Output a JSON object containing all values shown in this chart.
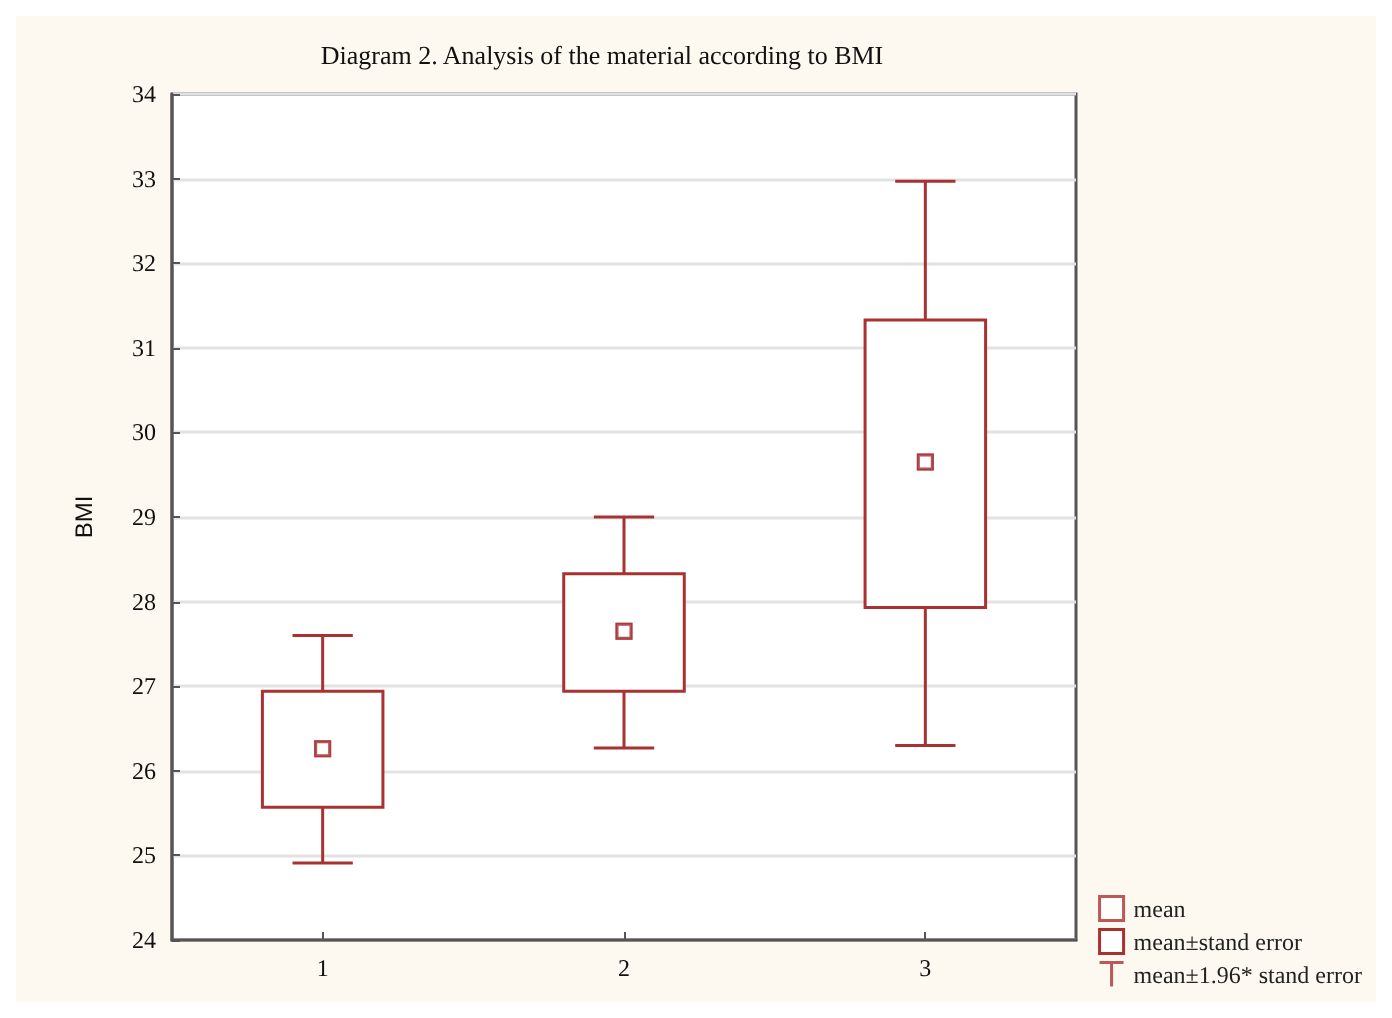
{
  "chart_data": {
    "type": "box",
    "title": "Diagram 2. Analysis of the material according to BMI",
    "ylabel": "BMI",
    "categories": [
      "1",
      "2",
      "3"
    ],
    "series": [
      {
        "type": "scatter",
        "name": "mean",
        "color": "#a83232",
        "marker": "square",
        "values": [
          26.26,
          27.65,
          29.65
        ]
      },
      {
        "type": "box",
        "name": "mean±stand error",
        "color": "#a83232",
        "boxes": [
          {
            "q1": 25.57,
            "q3": 26.94
          },
          {
            "q1": 26.94,
            "q3": 28.33
          },
          {
            "q1": 27.93,
            "q3": 31.33
          }
        ]
      },
      {
        "type": "scatter",
        "name": "mean±1.96* stand error",
        "color": "#a83232",
        "marker": "square",
        "values": [
          26.26,
          27.65,
          29.65
        ],
        "errors": [
          [
            24.91,
            27.6
          ],
          [
            26.27,
            29.0
          ],
          [
            26.3,
            32.97
          ]
        ]
      }
    ],
    "ylim": [
      24,
      34
    ],
    "yticks": [
      24,
      25,
      26,
      27,
      28,
      29,
      30,
      31,
      32,
      33,
      34
    ],
    "grid": "y",
    "legend": "bottom right"
  }
}
